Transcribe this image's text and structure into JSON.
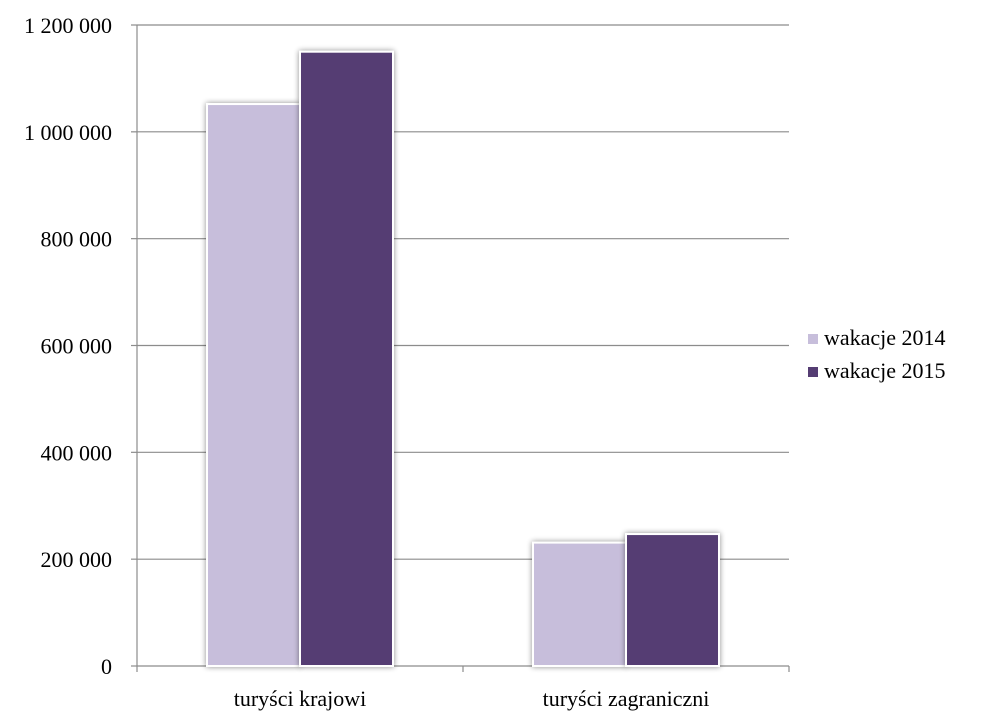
{
  "chart_data": {
    "type": "bar",
    "categories": [
      "turyści krajowi",
      "turyści zagraniczni"
    ],
    "series": [
      {
        "name": "wakacje 2014",
        "values": [
          1052000,
          231000
        ],
        "color": "#c7bedb"
      },
      {
        "name": "wakacje 2015",
        "values": [
          1150000,
          247000
        ],
        "color": "#553d73"
      }
    ],
    "ylim": [
      0,
      1200000
    ],
    "yticks": [
      0,
      200000,
      400000,
      600000,
      800000,
      1000000,
      1200000
    ],
    "ytick_labels": [
      "0",
      "200 000",
      "400 000",
      "600 000",
      "800 000",
      "1 000 000",
      "1 200 000"
    ],
    "grid": true,
    "legend_position": "right",
    "title": "",
    "xlabel": "",
    "ylabel": ""
  }
}
